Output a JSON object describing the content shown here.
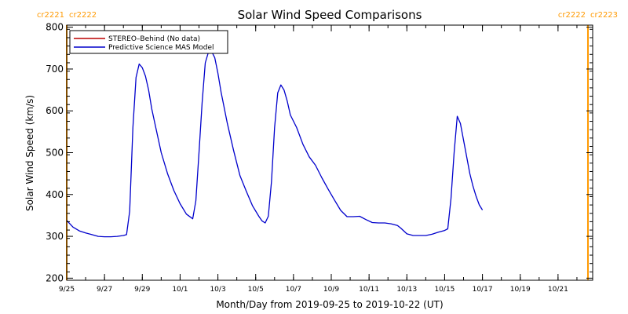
{
  "chart_data": {
    "type": "line",
    "title": "Solar Wind Speed Comparisons",
    "xlabel": "Month/Day from 2019-09-25 to 2019-10-22 (UT)",
    "ylabel": "Solar Wind Speed (km/s)",
    "x_range": [
      "2019-09-25",
      "2019-10-22T20:00"
    ],
    "ylim": [
      195,
      805
    ],
    "grid": false,
    "legend_position": "top-left",
    "x_ticks": [
      {
        "date": "2019-09-25",
        "label": "9/25"
      },
      {
        "date": "2019-09-27",
        "label": "9/27"
      },
      {
        "date": "2019-09-29",
        "label": "9/29"
      },
      {
        "date": "2019-10-01",
        "label": "10/1"
      },
      {
        "date": "2019-10-03",
        "label": "10/3"
      },
      {
        "date": "2019-10-05",
        "label": "10/5"
      },
      {
        "date": "2019-10-07",
        "label": "10/7"
      },
      {
        "date": "2019-10-09",
        "label": "10/9"
      },
      {
        "date": "2019-10-11",
        "label": "10/11"
      },
      {
        "date": "2019-10-13",
        "label": "10/13"
      },
      {
        "date": "2019-10-15",
        "label": "10/15"
      },
      {
        "date": "2019-10-17",
        "label": "10/17"
      },
      {
        "date": "2019-10-19",
        "label": "10/19"
      },
      {
        "date": "2019-10-21",
        "label": "10/21"
      }
    ],
    "y_ticks": [
      200,
      300,
      400,
      500,
      600,
      700,
      800
    ],
    "carrington_markers": [
      {
        "date": "2019-09-25",
        "left_label": "cr2221",
        "right_label": "cr2222",
        "color": "#ff9900"
      },
      {
        "date": "2019-10-22T14:00",
        "left_label": "cr2222",
        "right_label": "cr2223",
        "color": "#ff9900"
      }
    ],
    "series": [
      {
        "name": "STEREO–Behind (No data)",
        "color": "#bb0000",
        "points": []
      },
      {
        "name": "Predictive Science MAS Model",
        "color": "#0000cc",
        "points": [
          [
            "2019-09-25T00:00",
            338
          ],
          [
            "2019-09-25T08:00",
            322
          ],
          [
            "2019-09-25T16:00",
            313
          ],
          [
            "2019-09-26T00:00",
            308
          ],
          [
            "2019-09-26T08:00",
            304
          ],
          [
            "2019-09-26T16:00",
            300
          ],
          [
            "2019-09-27T00:00",
            299
          ],
          [
            "2019-09-27T08:00",
            299
          ],
          [
            "2019-09-27T16:00",
            300
          ],
          [
            "2019-09-28T00:00",
            302
          ],
          [
            "2019-09-28T04:00",
            304
          ],
          [
            "2019-09-28T08:00",
            360
          ],
          [
            "2019-09-28T12:00",
            560
          ],
          [
            "2019-09-28T16:00",
            680
          ],
          [
            "2019-09-28T20:00",
            712
          ],
          [
            "2019-09-29T00:00",
            703
          ],
          [
            "2019-09-29T04:00",
            683
          ],
          [
            "2019-09-29T08:00",
            650
          ],
          [
            "2019-09-29T12:00",
            605
          ],
          [
            "2019-09-29T16:00",
            570
          ],
          [
            "2019-09-30T00:00",
            500
          ],
          [
            "2019-09-30T08:00",
            450
          ],
          [
            "2019-09-30T16:00",
            410
          ],
          [
            "2019-10-01T00:00",
            378
          ],
          [
            "2019-10-01T08:00",
            353
          ],
          [
            "2019-10-01T16:00",
            342
          ],
          [
            "2019-10-01T20:00",
            385
          ],
          [
            "2019-10-02T00:00",
            500
          ],
          [
            "2019-10-02T04:00",
            620
          ],
          [
            "2019-10-02T08:00",
            715
          ],
          [
            "2019-10-02T12:00",
            740
          ],
          [
            "2019-10-02T16:00",
            742
          ],
          [
            "2019-10-02T20:00",
            727
          ],
          [
            "2019-10-03T00:00",
            690
          ],
          [
            "2019-10-03T04:00",
            645
          ],
          [
            "2019-10-03T12:00",
            570
          ],
          [
            "2019-10-03T20:00",
            505
          ],
          [
            "2019-10-04T04:00",
            445
          ],
          [
            "2019-10-04T12:00",
            408
          ],
          [
            "2019-10-04T20:00",
            373
          ],
          [
            "2019-10-05T04:00",
            348
          ],
          [
            "2019-10-05T08:00",
            337
          ],
          [
            "2019-10-05T12:00",
            332
          ],
          [
            "2019-10-05T16:00",
            348
          ],
          [
            "2019-10-05T20:00",
            430
          ],
          [
            "2019-10-06T00:00",
            560
          ],
          [
            "2019-10-06T04:00",
            643
          ],
          [
            "2019-10-06T08:00",
            662
          ],
          [
            "2019-10-06T12:00",
            650
          ],
          [
            "2019-10-06T16:00",
            624
          ],
          [
            "2019-10-06T20:00",
            590
          ],
          [
            "2019-10-07T04:00",
            560
          ],
          [
            "2019-10-07T12:00",
            520
          ],
          [
            "2019-10-07T20:00",
            490
          ],
          [
            "2019-10-08T04:00",
            470
          ],
          [
            "2019-10-08T12:00",
            440
          ],
          [
            "2019-10-08T20:00",
            413
          ],
          [
            "2019-10-09T04:00",
            387
          ],
          [
            "2019-10-09T12:00",
            362
          ],
          [
            "2019-10-09T20:00",
            347
          ],
          [
            "2019-10-10T04:00",
            347
          ],
          [
            "2019-10-10T12:00",
            348
          ],
          [
            "2019-10-10T20:00",
            340
          ],
          [
            "2019-10-11T04:00",
            333
          ],
          [
            "2019-10-11T12:00",
            332
          ],
          [
            "2019-10-11T20:00",
            332
          ],
          [
            "2019-10-12T04:00",
            330
          ],
          [
            "2019-10-12T12:00",
            326
          ],
          [
            "2019-10-12T16:00",
            320
          ],
          [
            "2019-10-13T00:00",
            306
          ],
          [
            "2019-10-13T08:00",
            302
          ],
          [
            "2019-10-13T16:00",
            302
          ],
          [
            "2019-10-14T00:00",
            302
          ],
          [
            "2019-10-14T08:00",
            305
          ],
          [
            "2019-10-14T16:00",
            310
          ],
          [
            "2019-10-15T00:00",
            314
          ],
          [
            "2019-10-15T04:00",
            318
          ],
          [
            "2019-10-15T08:00",
            390
          ],
          [
            "2019-10-15T12:00",
            500
          ],
          [
            "2019-10-15T16:00",
            587
          ],
          [
            "2019-10-15T20:00",
            570
          ],
          [
            "2019-10-16T00:00",
            530
          ],
          [
            "2019-10-16T04:00",
            490
          ],
          [
            "2019-10-16T08:00",
            450
          ],
          [
            "2019-10-16T12:00",
            420
          ],
          [
            "2019-10-16T16:00",
            395
          ],
          [
            "2019-10-16T20:00",
            375
          ],
          [
            "2019-10-17T00:00",
            363
          ]
        ]
      }
    ]
  }
}
